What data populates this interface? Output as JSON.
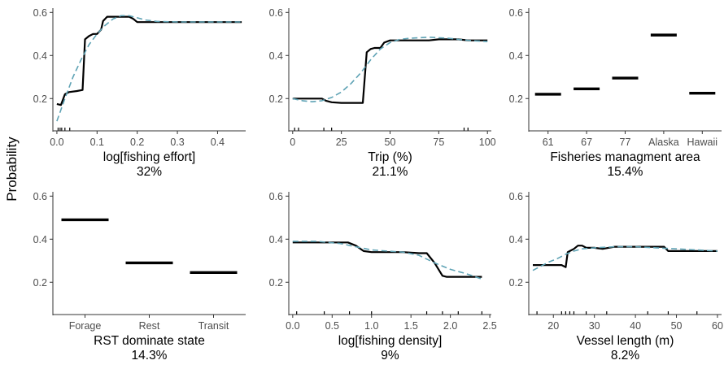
{
  "figure": {
    "ylabel": "Probability",
    "colors": {
      "observed": "#000000",
      "smooth": "#5fa3b5",
      "axis": "#333333",
      "tick_text": "#4d4d4d"
    }
  },
  "chart_data": [
    {
      "type": "line",
      "xlabel": "log[fishing effort]",
      "importance": "32%",
      "xlim": [
        -0.01,
        0.47
      ],
      "ylim": [
        0.05,
        0.62
      ],
      "xticks": [
        0.0,
        0.1,
        0.2,
        0.3,
        0.4
      ],
      "xtick_labels": [
        "0.0",
        "0.1",
        "0.2",
        "0.3",
        "0.4"
      ],
      "yticks": [
        0.2,
        0.4,
        0.6
      ],
      "ytick_labels": [
        "0.2",
        "0.4",
        "0.6"
      ],
      "rug": [
        0.003,
        0.008,
        0.012,
        0.02,
        0.032
      ],
      "series": [
        {
          "style": "solid",
          "x": [
            0.0,
            0.01,
            0.02,
            0.03,
            0.05,
            0.064,
            0.07,
            0.08,
            0.09,
            0.1,
            0.11,
            0.115,
            0.125,
            0.14,
            0.16,
            0.18,
            0.19,
            0.2,
            0.25,
            0.3,
            0.35,
            0.4,
            0.46
          ],
          "y": [
            0.175,
            0.17,
            0.22,
            0.23,
            0.235,
            0.24,
            0.475,
            0.49,
            0.5,
            0.5,
            0.52,
            0.56,
            0.58,
            0.58,
            0.58,
            0.58,
            0.57,
            0.555,
            0.555,
            0.555,
            0.555,
            0.555,
            0.555
          ]
        },
        {
          "style": "dashed",
          "x": [
            0.0,
            0.02,
            0.04,
            0.06,
            0.08,
            0.1,
            0.12,
            0.14,
            0.16,
            0.18,
            0.2,
            0.22,
            0.25,
            0.3,
            0.35,
            0.4,
            0.46
          ],
          "y": [
            0.095,
            0.2,
            0.3,
            0.38,
            0.45,
            0.5,
            0.54,
            0.57,
            0.585,
            0.585,
            0.575,
            0.565,
            0.558,
            0.556,
            0.556,
            0.556,
            0.556
          ]
        }
      ]
    },
    {
      "type": "line",
      "xlabel": "Trip (%)",
      "importance": "21.1%",
      "xlim": [
        -2,
        102
      ],
      "ylim": [
        0.05,
        0.62
      ],
      "xticks": [
        0,
        25,
        50,
        75,
        100
      ],
      "xtick_labels": [
        "0",
        "25",
        "50",
        "75",
        "100"
      ],
      "yticks": [
        0.2,
        0.4,
        0.6
      ],
      "ytick_labels": [
        "0.2",
        "0.4",
        "0.6"
      ],
      "rug": [
        1,
        3,
        16,
        20,
        88,
        90
      ],
      "series": [
        {
          "style": "solid",
          "x": [
            0,
            15,
            17,
            20,
            25,
            30,
            36,
            38,
            40,
            42,
            45,
            47,
            50,
            55,
            60,
            70,
            75,
            80,
            85,
            90,
            100
          ],
          "y": [
            0.2,
            0.2,
            0.19,
            0.183,
            0.18,
            0.18,
            0.18,
            0.415,
            0.43,
            0.435,
            0.435,
            0.46,
            0.47,
            0.47,
            0.47,
            0.47,
            0.475,
            0.475,
            0.475,
            0.47,
            0.47
          ]
        },
        {
          "style": "dashed",
          "x": [
            0,
            5,
            10,
            15,
            20,
            25,
            30,
            35,
            40,
            45,
            50,
            55,
            60,
            70,
            80,
            90,
            100
          ],
          "y": [
            0.2,
            0.19,
            0.185,
            0.19,
            0.205,
            0.23,
            0.27,
            0.32,
            0.38,
            0.43,
            0.46,
            0.475,
            0.48,
            0.485,
            0.48,
            0.47,
            0.465
          ]
        }
      ]
    },
    {
      "type": "bar",
      "xlabel": "Fisheries managment area",
      "importance": "15.4%",
      "ylim": [
        0.05,
        0.62
      ],
      "categories": [
        "61",
        "67",
        "77",
        "Alaska",
        "Hawaii"
      ],
      "values": [
        0.22,
        0.245,
        0.295,
        0.495,
        0.225
      ],
      "yticks": [
        0.2,
        0.4,
        0.6
      ],
      "ytick_labels": [
        "0.2",
        "0.4",
        "0.6"
      ]
    },
    {
      "type": "bar",
      "xlabel": "RST dominate state",
      "importance": "14.3%",
      "ylim": [
        0.05,
        0.62
      ],
      "categories": [
        "Forage",
        "Rest",
        "Transit"
      ],
      "values": [
        0.49,
        0.29,
        0.245
      ],
      "yticks": [
        0.2,
        0.4,
        0.6
      ],
      "ytick_labels": [
        "0.2",
        "0.4",
        "0.6"
      ]
    },
    {
      "type": "line",
      "xlabel": "log[fishing density]",
      "importance": "9%",
      "xlim": [
        -0.05,
        2.52
      ],
      "ylim": [
        0.05,
        0.62
      ],
      "xticks": [
        0.0,
        0.5,
        1.0,
        1.5,
        2.0,
        2.5
      ],
      "xtick_labels": [
        "0.0",
        "0.5",
        "1.0",
        "1.5",
        "2.0",
        "2.5"
      ],
      "yticks": [
        0.2,
        0.4,
        0.6
      ],
      "ytick_labels": [
        "0.2",
        "0.4",
        "0.6"
      ],
      "rug": [
        0.05,
        0.4,
        0.72,
        1.0,
        1.7,
        1.9,
        2.1,
        2.4
      ],
      "series": [
        {
          "style": "solid",
          "x": [
            0.0,
            0.2,
            0.4,
            0.5,
            0.7,
            0.8,
            0.9,
            1.0,
            1.2,
            1.4,
            1.6,
            1.7,
            1.8,
            1.85,
            1.9,
            1.95,
            2.0,
            2.2,
            2.4
          ],
          "y": [
            0.385,
            0.385,
            0.385,
            0.385,
            0.385,
            0.37,
            0.345,
            0.34,
            0.34,
            0.34,
            0.335,
            0.335,
            0.29,
            0.26,
            0.23,
            0.225,
            0.225,
            0.225,
            0.225
          ]
        },
        {
          "style": "dashed",
          "x": [
            0.0,
            0.3,
            0.6,
            0.8,
            1.0,
            1.2,
            1.4,
            1.6,
            1.8,
            2.0,
            2.2,
            2.4
          ],
          "y": [
            0.39,
            0.39,
            0.38,
            0.365,
            0.35,
            0.345,
            0.34,
            0.325,
            0.29,
            0.26,
            0.24,
            0.215
          ]
        }
      ]
    },
    {
      "type": "line",
      "xlabel": "Vessel length (m)",
      "importance": "8.2%",
      "xlim": [
        14,
        61
      ],
      "ylim": [
        0.05,
        0.62
      ],
      "xticks": [
        20,
        30,
        40,
        50,
        60
      ],
      "xtick_labels": [
        "20",
        "30",
        "40",
        "50",
        "60"
      ],
      "yticks": [
        0.2,
        0.4,
        0.6
      ],
      "ytick_labels": [
        "0.2",
        "0.4",
        "0.6"
      ],
      "rug": [
        16,
        22,
        23,
        24,
        25,
        28,
        33,
        43,
        48,
        55
      ],
      "series": [
        {
          "style": "solid",
          "x": [
            15,
            18,
            20,
            22,
            23,
            23.5,
            24,
            25,
            26,
            27,
            28,
            30,
            32,
            35,
            40,
            45,
            47,
            48,
            50,
            55,
            60
          ],
          "y": [
            0.28,
            0.28,
            0.28,
            0.28,
            0.27,
            0.34,
            0.345,
            0.355,
            0.37,
            0.37,
            0.36,
            0.36,
            0.355,
            0.365,
            0.365,
            0.365,
            0.365,
            0.345,
            0.345,
            0.345,
            0.345
          ]
        },
        {
          "style": "dashed",
          "x": [
            15,
            17,
            19,
            21,
            23,
            25,
            27,
            30,
            35,
            40,
            45,
            50,
            55,
            60
          ],
          "y": [
            0.255,
            0.275,
            0.295,
            0.31,
            0.33,
            0.345,
            0.355,
            0.36,
            0.365,
            0.365,
            0.36,
            0.355,
            0.35,
            0.345
          ]
        }
      ]
    }
  ]
}
